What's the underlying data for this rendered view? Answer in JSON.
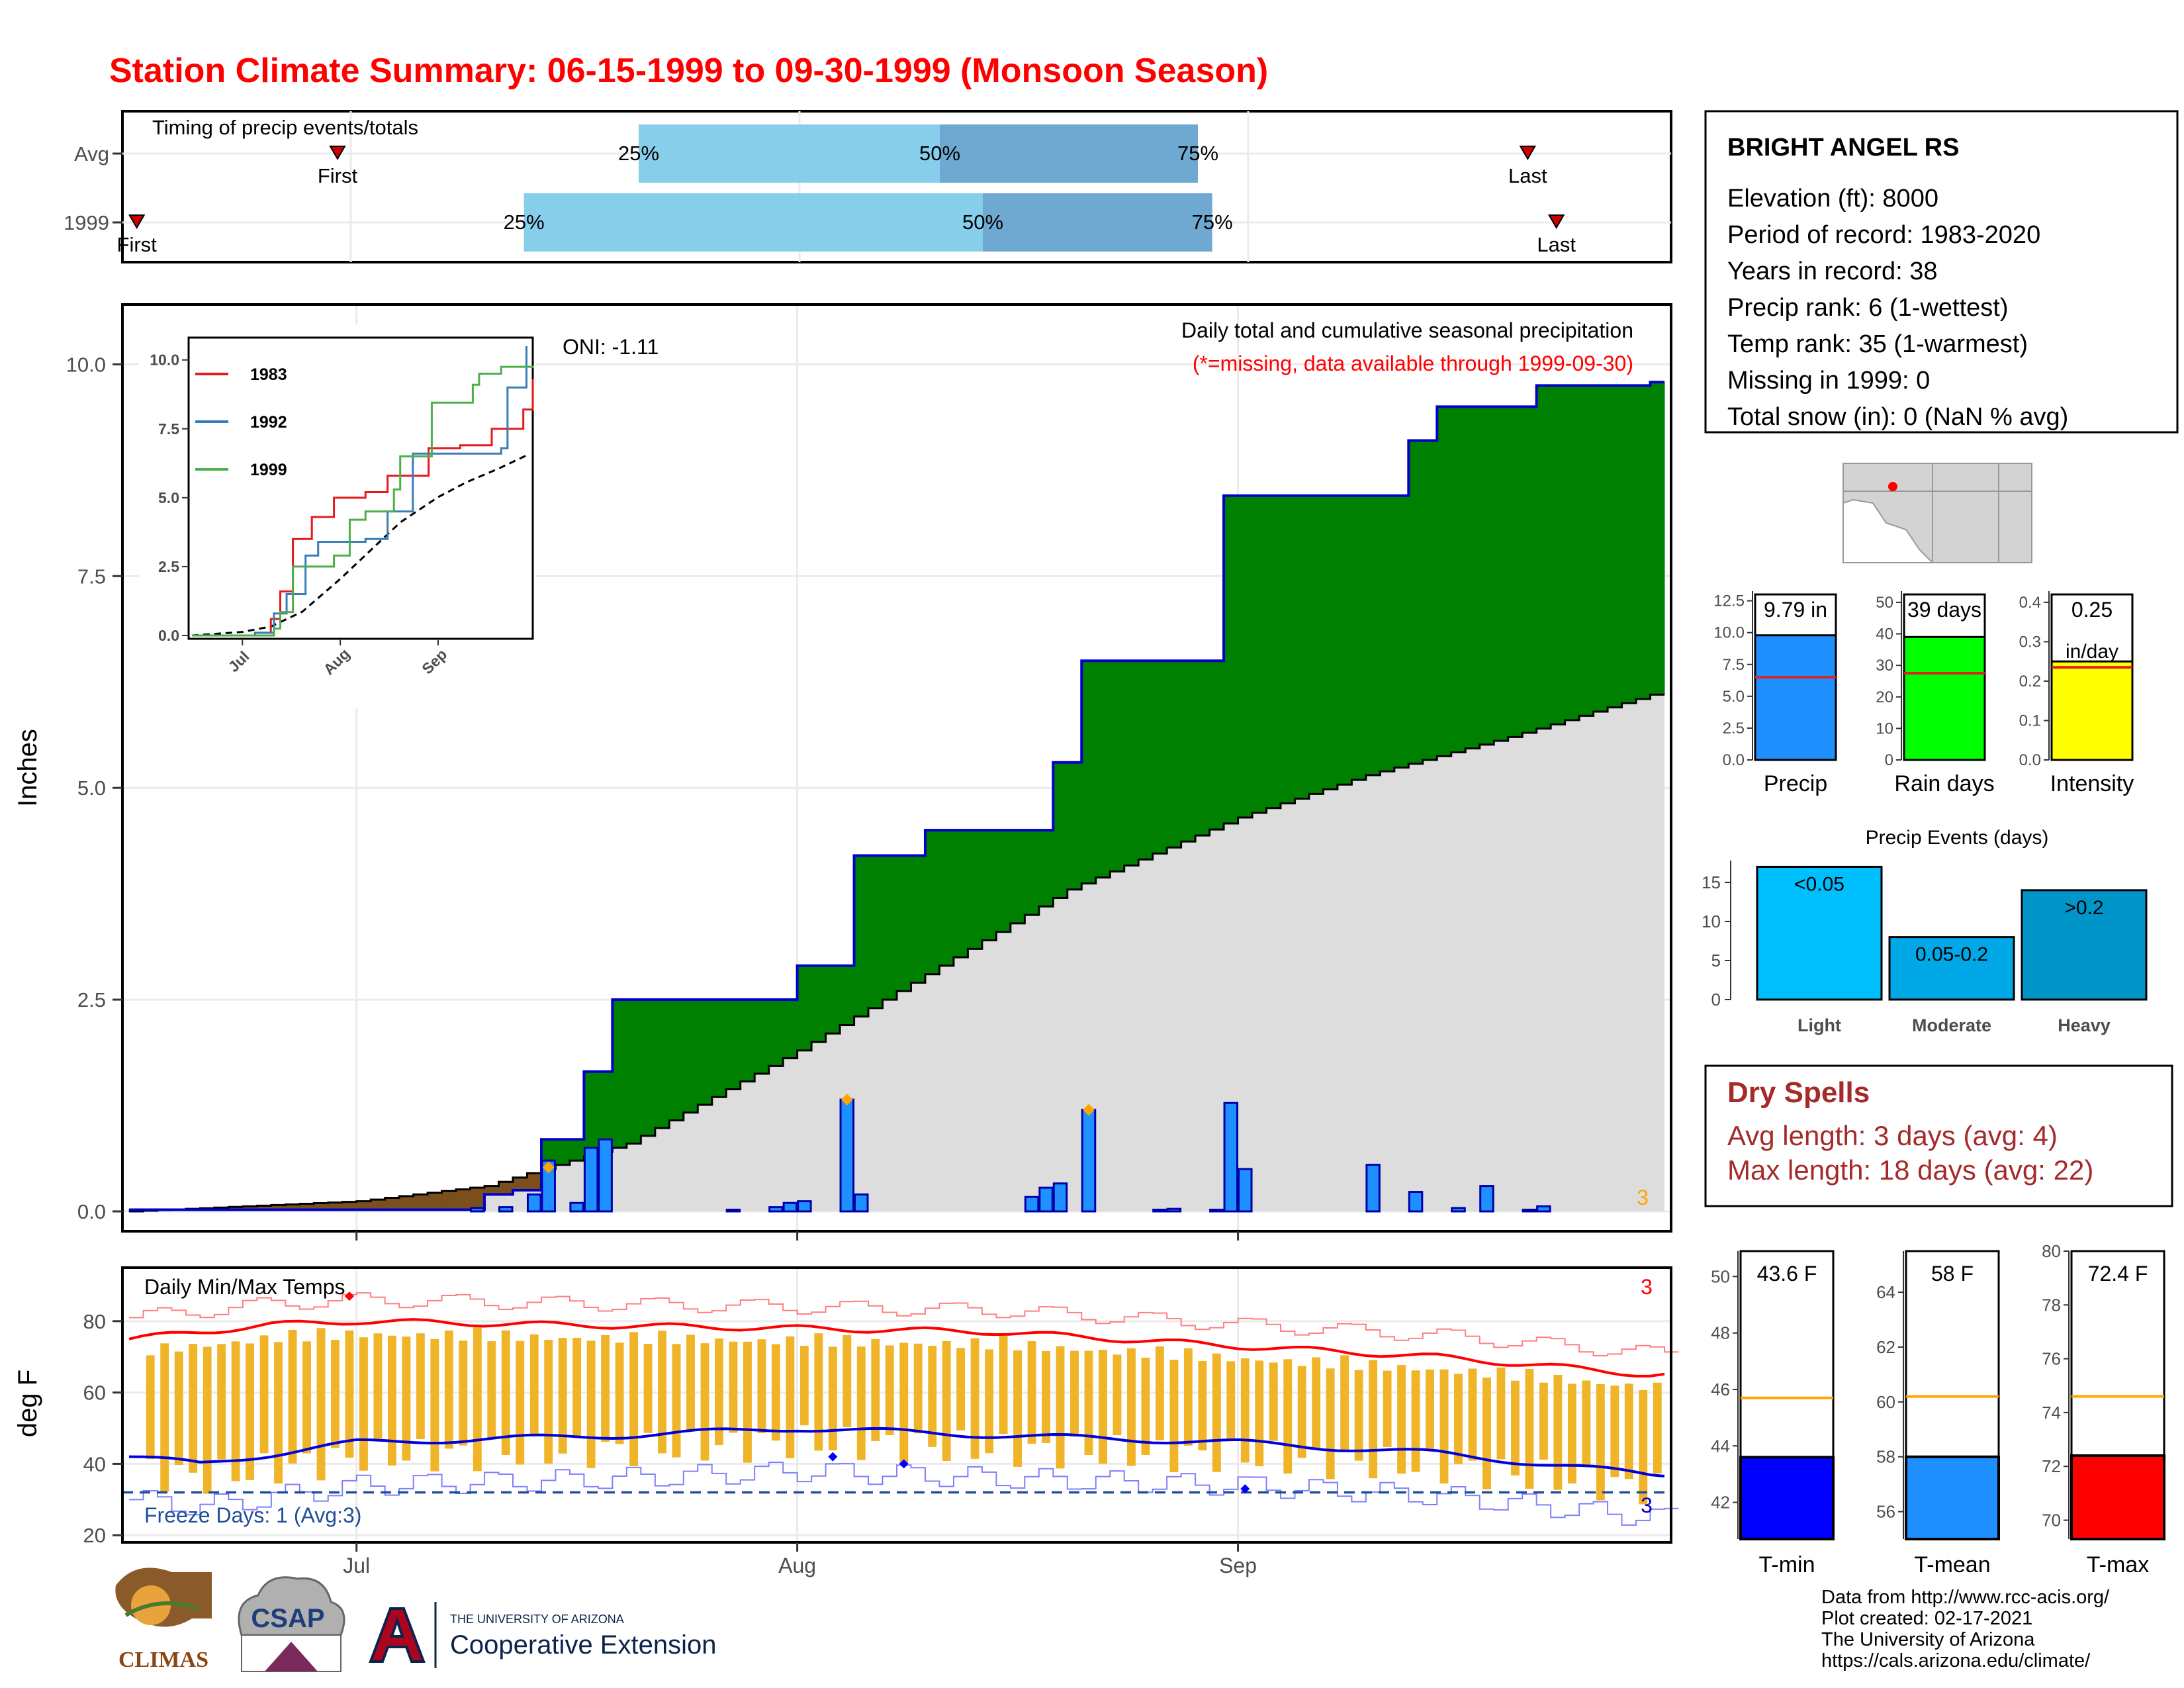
{
  "title": "Station Climate Summary: 06-15-1999 to 09-30-1999 (Monsoon Season)",
  "timing": {
    "label": "Timing of precip events/totals",
    "rows": [
      {
        "name": "Avg",
        "first_day": 15,
        "last_day": 98,
        "p25_day": 36,
        "p50_day": 57,
        "p75_day": 75
      },
      {
        "name": "1999",
        "first_day": 1,
        "last_day": 100,
        "p25_day": 28,
        "p50_day": 60,
        "p75_day": 76
      }
    ],
    "first_label": "First",
    "last_label": "Last",
    "p25_label": "25%",
    "p50_label": "50%",
    "p75_label": "75%"
  },
  "station": {
    "name": "BRIGHT ANGEL RS",
    "lines": [
      "Elevation (ft): 8000",
      "Period of record: 1983-2020",
      "Years in record: 38",
      "Precip rank: 6 (1-wettest)",
      "Temp rank: 35 (1-warmest)",
      "Missing in 1999: 0",
      "Total snow (in): 0 (NaN % avg)"
    ]
  },
  "summary_bars": [
    {
      "name": "Precip",
      "label": "9.79 in",
      "value": 9.79,
      "avg": 6.5,
      "ymax": 13,
      "ticks": [
        "0.0",
        "2.5",
        "5.0",
        "7.5",
        "10.0",
        "12.5"
      ],
      "tickvals": [
        0,
        2.5,
        5,
        7.5,
        10,
        12.5
      ],
      "color": "#1e90ff"
    },
    {
      "name": "Rain days",
      "label": "39 days",
      "value": 39,
      "avg": 27.5,
      "ymax": 52.5,
      "ticks": [
        "0",
        "10",
        "20",
        "30",
        "40",
        "50"
      ],
      "tickvals": [
        0,
        10,
        20,
        30,
        40,
        50
      ],
      "color": "#00ff00"
    },
    {
      "name": "Intensity",
      "label": "0.25",
      "label2": "in/day",
      "value": 0.25,
      "avg": 0.235,
      "ymax": 0.42,
      "ticks": [
        "0.0",
        "0.1",
        "0.2",
        "0.3",
        "0.4"
      ],
      "tickvals": [
        0,
        0.1,
        0.2,
        0.3,
        0.4
      ],
      "color": "#ffff00"
    }
  ],
  "events": {
    "title": "Precip Events (days)",
    "categories": [
      "Light",
      "Moderate",
      "Heavy"
    ],
    "labels": [
      "<0.05",
      "0.05-0.2",
      ">0.2"
    ],
    "values": [
      17,
      8,
      14
    ],
    "colors": [
      "#00bfff",
      "#00a8e8",
      "#0095c8"
    ],
    "ticks": [
      "0",
      "5",
      "10",
      "15"
    ],
    "tickvals": [
      0,
      5,
      10,
      15
    ],
    "ymax": 17.8
  },
  "dry_spells": {
    "title": "Dry Spells",
    "avg": "Avg length: 3 days (avg: 4)",
    "max": "Max length: 18 days (avg: 22)"
  },
  "temp_bars": [
    {
      "name": "T-min",
      "label": "43.6 F",
      "value": 43.6,
      "avg": 45.7,
      "ymin": 40.7,
      "ymax": 50.9,
      "ticks": [
        "42",
        "44",
        "46",
        "48",
        "50"
      ],
      "tickvals": [
        42,
        44,
        46,
        48,
        50
      ],
      "color": "#0000ff"
    },
    {
      "name": "T-mean",
      "label": "58 F",
      "value": 58,
      "avg": 60.2,
      "ymin": 55,
      "ymax": 65.5,
      "ticks": [
        "56",
        "58",
        "60",
        "62",
        "64"
      ],
      "tickvals": [
        56,
        58,
        60,
        62,
        64
      ],
      "color": "#1e90ff"
    },
    {
      "name": "T-max",
      "label": "72.4 F",
      "value": 72.4,
      "avg": 74.6,
      "ymin": 69.3,
      "ymax": 80,
      "ticks": [
        "70",
        "72",
        "74",
        "76",
        "78",
        "80"
      ],
      "tickvals": [
        70,
        72,
        74,
        76,
        78,
        80
      ],
      "color": "#ff0000"
    }
  ],
  "precip_panel": {
    "ylabel": "Inches",
    "yticks": [
      "0.0",
      "2.5",
      "5.0",
      "7.5",
      "10.0"
    ],
    "ytickvals": [
      0,
      2.5,
      5,
      7.5,
      10
    ],
    "ylim": [
      0,
      10.55
    ],
    "xticks": [
      "Jul",
      "Aug",
      "Sep"
    ],
    "xtickdays": [
      16,
      47,
      78
    ],
    "days_total": 108,
    "oni": "ONI: -1.11",
    "annot1": "Daily total and cumulative seasonal precipitation",
    "annot2": "(*=missing, data available through 1999-09-30)",
    "corner_count": "3",
    "inset": {
      "yticks": [
        "0.0",
        "2.5",
        "5.0",
        "7.5",
        "10.0"
      ],
      "ytickvals": [
        0,
        2.5,
        5,
        7.5,
        10
      ],
      "xticks": [
        "Jul",
        "Aug",
        "Sep"
      ],
      "legend": [
        {
          "name": "1983",
          "color": "#e41a1c"
        },
        {
          "name": "1992",
          "color": "#377eb8"
        },
        {
          "name": "1999",
          "color": "#4daf4a"
        }
      ]
    }
  },
  "temp_panel": {
    "ylabel": "deg F",
    "yticks": [
      "20",
      "40",
      "60",
      "80"
    ],
    "ytickvals": [
      20,
      40,
      60,
      80
    ],
    "ylim": [
      18,
      95
    ],
    "title": "Daily Min/Max Temps",
    "freeze": "Freeze Days: 1 (Avg:3)",
    "freeze_line": 32,
    "count_hi": "3",
    "count_lo": "3"
  },
  "chart_data": [
    {
      "type": "area",
      "title": "Daily total and cumulative seasonal precipitation",
      "ylabel": "Inches",
      "x_range": [
        "1999-06-15",
        "1999-09-30"
      ],
      "ylim": [
        0,
        10.55
      ],
      "series": [
        {
          "name": "1999 cumulative",
          "points": [
            [
              "1999-06-15",
              0.02
            ],
            [
              "1999-07-10",
              0.2
            ],
            [
              "1999-07-12",
              0.25
            ],
            [
              "1999-07-14",
              0.85
            ],
            [
              "1999-07-17",
              1.65
            ],
            [
              "1999-07-19",
              2.5
            ],
            [
              "1999-08-01",
              2.9
            ],
            [
              "1999-08-05",
              4.2
            ],
            [
              "1999-08-10",
              4.5
            ],
            [
              "1999-08-19",
              5.3
            ],
            [
              "1999-08-21",
              6.5
            ],
            [
              "1999-08-31",
              8.45
            ],
            [
              "1999-09-13",
              9.1
            ],
            [
              "1999-09-15",
              9.5
            ],
            [
              "1999-09-22",
              9.75
            ],
            [
              "1999-09-30",
              9.79
            ]
          ]
        },
        {
          "name": "Average cumulative",
          "points": [
            [
              "1999-06-15",
              0.0
            ],
            [
              "1999-07-01",
              0.12
            ],
            [
              "1999-07-10",
              0.3
            ],
            [
              "1999-07-20",
              0.8
            ],
            [
              "1999-08-01",
              1.9
            ],
            [
              "1999-08-10",
              2.8
            ],
            [
              "1999-08-20",
              3.8
            ],
            [
              "1999-09-01",
              4.65
            ],
            [
              "1999-09-10",
              5.15
            ],
            [
              "1999-09-20",
              5.6
            ],
            [
              "1999-09-30",
              6.1
            ]
          ]
        },
        {
          "name": "Daily precip",
          "points": [
            [
              "1999-07-09",
              0.04
            ],
            [
              "1999-07-11",
              0.05
            ],
            [
              "1999-07-13",
              0.2
            ],
            [
              "1999-07-14",
              0.6
            ],
            [
              "1999-07-16",
              0.1
            ],
            [
              "1999-07-17",
              0.75
            ],
            [
              "1999-07-18",
              0.85
            ],
            [
              "1999-07-27",
              0.02
            ],
            [
              "1999-07-30",
              0.05
            ],
            [
              "1999-07-31",
              0.1
            ],
            [
              "1999-08-01",
              0.12
            ],
            [
              "1999-08-04",
              1.32
            ],
            [
              "1999-08-05",
              0.2
            ],
            [
              "1999-08-17",
              0.17
            ],
            [
              "1999-08-18",
              0.28
            ],
            [
              "1999-08-19",
              0.33
            ],
            [
              "1999-08-21",
              1.2
            ],
            [
              "1999-08-26",
              0.02
            ],
            [
              "1999-08-27",
              0.03
            ],
            [
              "1999-08-30",
              0.02
            ],
            [
              "1999-08-31",
              1.28
            ],
            [
              "1999-09-01",
              0.5
            ],
            [
              "1999-09-10",
              0.55
            ],
            [
              "1999-09-13",
              0.23
            ],
            [
              "1999-09-16",
              0.04
            ],
            [
              "1999-09-18",
              0.3
            ],
            [
              "1999-09-21",
              0.02
            ],
            [
              "1999-09-22",
              0.06
            ]
          ]
        }
      ]
    },
    {
      "type": "bar",
      "title": "Daily Min/Max Temps",
      "ylabel": "deg F",
      "x_range": [
        "1999-06-15",
        "1999-09-30"
      ],
      "ylim": [
        18,
        95
      ],
      "series": [
        {
          "name": "Avg max",
          "points": [
            [
              "1999-06-15",
              75
            ],
            [
              "1999-06-25",
              79
            ],
            [
              "1999-07-01",
              80
            ],
            [
              "1999-07-15",
              79
            ],
            [
              "1999-08-01",
              78
            ],
            [
              "1999-08-15",
              77
            ],
            [
              "1999-09-01",
              73
            ],
            [
              "1999-09-15",
              70
            ],
            [
              "1999-09-30",
              65
            ]
          ]
        },
        {
          "name": "Avg min",
          "points": [
            [
              "1999-06-15",
              42
            ],
            [
              "1999-06-20",
              40
            ],
            [
              "1999-07-01",
              46
            ],
            [
              "1999-07-20",
              48
            ],
            [
              "1999-08-01",
              50
            ],
            [
              "1999-08-15",
              48
            ],
            [
              "1999-09-01",
              46
            ],
            [
              "1999-09-15",
              43
            ],
            [
              "1999-09-30",
              37
            ]
          ]
        },
        {
          "name": "Freeze threshold",
          "points": [
            [
              "1999-06-15",
              32
            ],
            [
              "1999-09-30",
              32
            ]
          ]
        }
      ]
    }
  ],
  "footer": {
    "logos": [
      "CLIMAS",
      "CSAP"
    ],
    "ua": "THE UNIVERSITY OF ARIZONA",
    "coop": "Cooperative Extension",
    "credits": [
      "Data from http://www.rcc-acis.org/",
      "Plot created: 02-17-2021",
      "The University of Arizona",
      "https://cals.arizona.edu/climate/"
    ]
  }
}
